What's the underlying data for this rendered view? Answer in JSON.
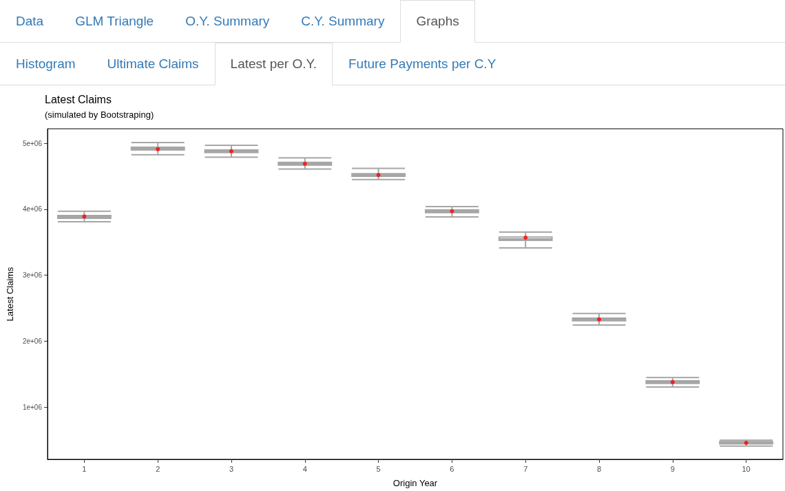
{
  "chart_data": {
    "type": "box",
    "title": "Latest Claims",
    "subtitle": "(simulated by Bootstraping)",
    "xlabel": "Origin Year",
    "ylabel": "Latest Claims",
    "annotations": [
      "Data",
      "GLM Triangle",
      "O.Y. Summary",
      "C.Y. Summary",
      "Graphs",
      "Histogram",
      "Ultimate Claims",
      "Latest per O.Y.",
      "Future Payments per C.Y"
    ],
    "categories": [
      "1",
      "2",
      "3",
      "4",
      "5",
      "6",
      "7",
      "8",
      "9",
      "10"
    ],
    "ylim": [
      210000,
      5220000
    ],
    "yticks": [
      {
        "value": 1000000,
        "label": "1e+06"
      },
      {
        "value": 2000000,
        "label": "2e+06"
      },
      {
        "value": 3000000,
        "label": "3e+06"
      },
      {
        "value": 4000000,
        "label": "4e+06"
      },
      {
        "value": 5000000,
        "label": "5e+06"
      }
    ],
    "grid": false,
    "series": [
      {
        "color": "#a6a6a6",
        "boxes": [
          {
            "low": 3810000,
            "q1": 3864000,
            "median": 3885000,
            "q3": 3905000,
            "high": 3970000
          },
          {
            "low": 4825000,
            "q1": 4900000,
            "median": 4920000,
            "q3": 4940000,
            "high": 5010000
          },
          {
            "low": 4790000,
            "q1": 4860000,
            "median": 4880000,
            "q3": 4900000,
            "high": 4970000
          },
          {
            "low": 4610000,
            "q1": 4670000,
            "median": 4690000,
            "q3": 4710000,
            "high": 4780000
          },
          {
            "low": 4450000,
            "q1": 4500000,
            "median": 4520000,
            "q3": 4540000,
            "high": 4620000
          },
          {
            "low": 3885000,
            "q1": 3950000,
            "median": 3970000,
            "q3": 3990000,
            "high": 4040000
          },
          {
            "low": 3415000,
            "q1": 3530000,
            "median": 3550000,
            "q3": 3580000,
            "high": 3655000
          },
          {
            "low": 2245000,
            "q1": 2310000,
            "median": 2330000,
            "q3": 2350000,
            "high": 2420000
          },
          {
            "low": 1305000,
            "q1": 1360000,
            "median": 1380000,
            "q3": 1400000,
            "high": 1450000
          },
          {
            "low": 410000,
            "q1": 445000,
            "median": 460000,
            "q3": 475000,
            "high": 500000
          }
        ]
      },
      {
        "type": "scatter",
        "color": "#ff0000",
        "x": [
          "1",
          "2",
          "3",
          "4",
          "5",
          "6",
          "7",
          "8",
          "9",
          "10"
        ],
        "values": [
          3890000,
          4910000,
          4880000,
          4690000,
          4520000,
          3970000,
          3570000,
          2330000,
          1380000,
          460000
        ]
      }
    ]
  }
}
